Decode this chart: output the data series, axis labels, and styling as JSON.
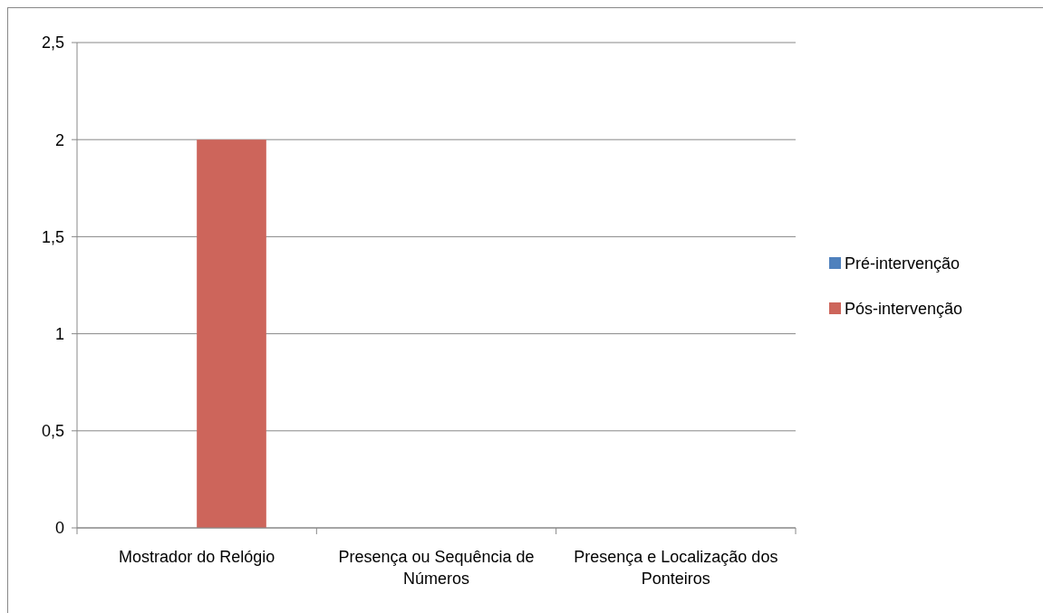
{
  "chart_data": {
    "type": "bar",
    "categories": [
      "Mostrador do Relógio",
      "Presença ou Sequência de Números",
      "Presença e Localização dos Ponteiros"
    ],
    "series": [
      {
        "name": "Pré-intervenção",
        "color": "#4f81bd",
        "values": [
          0,
          0,
          0
        ]
      },
      {
        "name": "Pós-intervenção",
        "color": "#cd655b",
        "values": [
          2,
          0,
          0
        ]
      }
    ],
    "ylim": [
      0,
      2.5
    ],
    "yticks": [
      0,
      {
        "value": 0.5,
        "label": "0,5"
      },
      1,
      {
        "value": 1.5,
        "label": "1,5"
      },
      2,
      {
        "value": 2.5,
        "label": "2,5"
      }
    ],
    "grid": "y",
    "legend": "right"
  }
}
